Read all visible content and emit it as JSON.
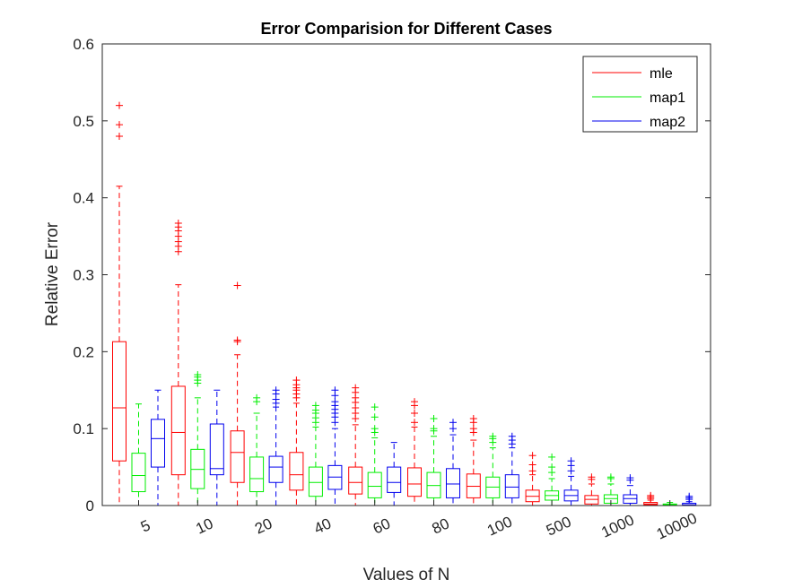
{
  "chart_data": {
    "type": "box",
    "title": "Error Comparision for Different Cases",
    "xlabel": "Values of N",
    "ylabel": "Relative Error",
    "ylim": [
      0,
      0.6
    ],
    "yticks": [
      0,
      0.1,
      0.2,
      0.3,
      0.4,
      0.5,
      0.6
    ],
    "ytick_labels": [
      "0",
      "0.1",
      "0.2",
      "0.3",
      "0.4",
      "0.5",
      "0.6"
    ],
    "categories": [
      "5",
      "10",
      "20",
      "40",
      "60",
      "80",
      "100",
      "500",
      "1000",
      "10000"
    ],
    "legend": {
      "position": "top-right",
      "entries": [
        "mle",
        "map1",
        "map2"
      ]
    },
    "grid": false,
    "series": [
      {
        "name": "mle",
        "color": "#ff0000",
        "boxes": [
          {
            "lw": 0,
            "q1": 0.058,
            "med": 0.127,
            "q3": 0.213,
            "uw": 0.415,
            "outliers": [
              0.48,
              0.495,
              0.52
            ]
          },
          {
            "lw": 0,
            "q1": 0.04,
            "med": 0.095,
            "q3": 0.155,
            "uw": 0.287,
            "outliers": [
              0.33,
              0.337,
              0.343,
              0.35,
              0.357,
              0.362,
              0.367
            ]
          },
          {
            "lw": 0,
            "q1": 0.03,
            "med": 0.069,
            "q3": 0.097,
            "uw": 0.196,
            "outliers": [
              0.213,
              0.215,
              0.286
            ]
          },
          {
            "lw": 0,
            "q1": 0.02,
            "med": 0.04,
            "q3": 0.069,
            "uw": 0.133,
            "outliers": [
              0.14,
              0.145,
              0.15,
              0.153,
              0.157,
              0.163
            ]
          },
          {
            "lw": 0,
            "q1": 0.015,
            "med": 0.03,
            "q3": 0.05,
            "uw": 0.105,
            "outliers": [
              0.113,
              0.12,
              0.127,
              0.134,
              0.14,
              0.147,
              0.153
            ]
          },
          {
            "lw": 0,
            "q1": 0.012,
            "med": 0.028,
            "q3": 0.049,
            "uw": 0.102,
            "outliers": [
              0.108,
              0.12,
              0.13,
              0.135
            ]
          },
          {
            "lw": 0,
            "q1": 0.01,
            "med": 0.025,
            "q3": 0.041,
            "uw": 0.085,
            "outliers": [
              0.095,
              0.1,
              0.108,
              0.113
            ]
          },
          {
            "lw": 0,
            "q1": 0.005,
            "med": 0.012,
            "q3": 0.02,
            "uw": 0.04,
            "outliers": [
              0.045,
              0.053,
              0.065
            ]
          },
          {
            "lw": 0,
            "q1": 0.002,
            "med": 0.008,
            "q3": 0.013,
            "uw": 0.028,
            "outliers": [
              0.034,
              0.037
            ]
          },
          {
            "lw": 0,
            "q1": 0.001,
            "med": 0.002,
            "q3": 0.004,
            "uw": 0.007,
            "outliers": [
              0.009,
              0.011,
              0.013
            ]
          }
        ]
      },
      {
        "name": "map1",
        "color": "#00ee00",
        "boxes": [
          {
            "lw": 0,
            "q1": 0.018,
            "med": 0.039,
            "q3": 0.068,
            "uw": 0.132,
            "outliers": []
          },
          {
            "lw": 0,
            "q1": 0.022,
            "med": 0.047,
            "q3": 0.073,
            "uw": 0.14,
            "outliers": [
              0.159,
              0.163,
              0.167,
              0.17
            ]
          },
          {
            "lw": 0,
            "q1": 0.018,
            "med": 0.035,
            "q3": 0.063,
            "uw": 0.12,
            "outliers": [
              0.135,
              0.14
            ]
          },
          {
            "lw": 0,
            "q1": 0.012,
            "med": 0.03,
            "q3": 0.05,
            "uw": 0.102,
            "outliers": [
              0.108,
              0.114,
              0.12,
              0.124,
              0.13
            ]
          },
          {
            "lw": 0,
            "q1": 0.01,
            "med": 0.025,
            "q3": 0.043,
            "uw": 0.088,
            "outliers": [
              0.095,
              0.1,
              0.115,
              0.128
            ]
          },
          {
            "lw": 0,
            "q1": 0.01,
            "med": 0.026,
            "q3": 0.043,
            "uw": 0.09,
            "outliers": [
              0.097,
              0.1,
              0.113
            ]
          },
          {
            "lw": 0,
            "q1": 0.01,
            "med": 0.024,
            "q3": 0.037,
            "uw": 0.075,
            "outliers": [
              0.082,
              0.087,
              0.09
            ]
          },
          {
            "lw": 0,
            "q1": 0.007,
            "med": 0.013,
            "q3": 0.019,
            "uw": 0.035,
            "outliers": [
              0.043,
              0.05,
              0.063
            ]
          },
          {
            "lw": 0,
            "q1": 0.003,
            "med": 0.009,
            "q3": 0.014,
            "uw": 0.028,
            "outliers": [
              0.035,
              0.037
            ]
          },
          {
            "lw": 0,
            "q1": 0.0,
            "med": 0.001,
            "q3": 0.002,
            "uw": 0.004,
            "outliers": []
          }
        ]
      },
      {
        "name": "map2",
        "color": "#0000ee",
        "boxes": [
          {
            "lw": 0,
            "q1": 0.05,
            "med": 0.087,
            "q3": 0.112,
            "uw": 0.15,
            "outliers": []
          },
          {
            "lw": 0,
            "q1": 0.04,
            "med": 0.048,
            "q3": 0.106,
            "uw": 0.15,
            "outliers": []
          },
          {
            "lw": 0,
            "q1": 0.03,
            "med": 0.05,
            "q3": 0.064,
            "uw": 0.128,
            "outliers": [
              0.133,
              0.138,
              0.145,
              0.15
            ]
          },
          {
            "lw": 0,
            "q1": 0.021,
            "med": 0.037,
            "q3": 0.052,
            "uw": 0.1,
            "outliers": [
              0.108,
              0.115,
              0.12,
              0.125,
              0.13,
              0.135,
              0.143,
              0.15
            ]
          },
          {
            "lw": 0,
            "q1": 0.017,
            "med": 0.03,
            "q3": 0.05,
            "uw": 0.082,
            "outliers": []
          },
          {
            "lw": 0,
            "q1": 0.01,
            "med": 0.028,
            "q3": 0.048,
            "uw": 0.092,
            "outliers": [
              0.1,
              0.108
            ]
          },
          {
            "lw": 0,
            "q1": 0.01,
            "med": 0.024,
            "q3": 0.04,
            "uw": 0.075,
            "outliers": [
              0.08,
              0.085,
              0.09
            ]
          },
          {
            "lw": 0,
            "q1": 0.006,
            "med": 0.013,
            "q3": 0.02,
            "uw": 0.038,
            "outliers": [
              0.045,
              0.052,
              0.058
            ]
          },
          {
            "lw": 0,
            "q1": 0.003,
            "med": 0.009,
            "q3": 0.014,
            "uw": 0.026,
            "outliers": [
              0.033,
              0.036
            ]
          },
          {
            "lw": 0,
            "q1": 0.0,
            "med": 0.001,
            "q3": 0.003,
            "uw": 0.005,
            "outliers": [
              0.008,
              0.01,
              0.012
            ]
          }
        ]
      }
    ]
  }
}
